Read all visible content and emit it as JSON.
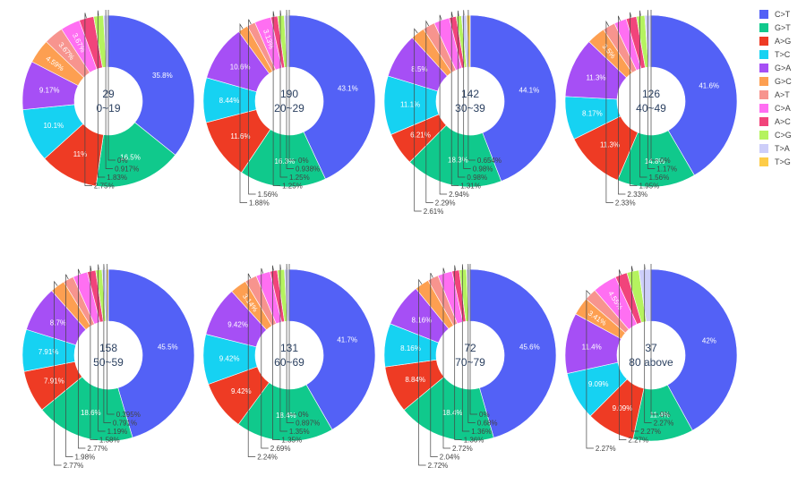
{
  "chart_data": {
    "type": "pie",
    "categories": [
      "C>T",
      "G>T",
      "A>G",
      "T>C",
      "G>A",
      "G>C",
      "A>T",
      "C>A",
      "A>C",
      "C>G",
      "T>A",
      "T>G"
    ],
    "colors": [
      "#5361f6",
      "#10c98c",
      "#ee3b24",
      "#16d2f2",
      "#a64ff5",
      "#fd9f51",
      "#f7948e",
      "#ff6ff2",
      "#f1447b",
      "#b5f35f",
      "#cdcef9",
      "#fdcc48"
    ],
    "charts": [
      {
        "center_count": "29",
        "center_label": "0~19",
        "values": [
          35.8,
          16.5,
          11,
          10.1,
          9.17,
          4.59,
          3.67,
          3.67,
          2.75,
          1.83,
          0.917,
          0
        ],
        "labels": [
          "35.8%",
          "16.5%",
          "11%",
          "10.1%",
          "9.17%",
          "4.59%",
          "3.67%",
          "3.67%",
          "2.75%",
          "1.83%",
          "0.917%",
          "0%"
        ]
      },
      {
        "center_count": "190",
        "center_label": "20~29",
        "values": [
          43.1,
          16.3,
          11.6,
          8.44,
          10.6,
          1.88,
          1.56,
          3.13,
          1.25,
          1.25,
          0.938,
          0
        ],
        "labels": [
          "43.1%",
          "16.3%",
          "11.6%",
          "8.44%",
          "10.6%",
          "1.88%",
          "1.56%",
          "3.13%",
          "1.25%",
          "1.25%",
          "0.938%",
          "0%"
        ]
      },
      {
        "center_count": "142",
        "center_label": "30~39",
        "values": [
          44.1,
          18.3,
          6.21,
          11.1,
          8.5,
          2.61,
          2.29,
          2.94,
          1.31,
          0.98,
          0.98,
          0.654
        ],
        "labels": [
          "44.1%",
          "18.3%",
          "6.21%",
          "11.1%",
          "8.5%",
          "2.61%",
          "2.29%",
          "2.94%",
          "1.31%",
          "0.98%",
          "0.98%",
          "0.654%"
        ]
      },
      {
        "center_count": "126",
        "center_label": "40~49",
        "values": [
          41.6,
          14.8,
          11.3,
          8.17,
          11.3,
          3.5,
          2.33,
          2.33,
          1.95,
          1.56,
          1.17,
          0
        ],
        "labels": [
          "41.6%",
          "14.8%",
          "11.3%",
          "8.17%",
          "11.3%",
          "3.5%",
          "2.33%",
          "2.33%",
          "1.95%",
          "1.56%",
          "1.17%",
          "0%"
        ]
      },
      {
        "center_count": "158",
        "center_label": "50~59",
        "values": [
          45.5,
          18.6,
          7.91,
          7.91,
          8.7,
          2.77,
          1.98,
          2.77,
          1.58,
          1.19,
          0.791,
          0.395
        ],
        "labels": [
          "45.5%",
          "18.6%",
          "7.91%",
          "7.91%",
          "8.7%",
          "2.77%",
          "1.98%",
          "2.77%",
          "1.58%",
          "1.19%",
          "0.791%",
          "0.395%"
        ]
      },
      {
        "center_count": "131",
        "center_label": "60~69",
        "values": [
          41.7,
          18.4,
          9.42,
          9.42,
          9.42,
          3.14,
          2.24,
          2.69,
          1.35,
          1.35,
          0.897,
          0
        ],
        "labels": [
          "41.7%",
          "18.4%",
          "9.42%",
          "9.42%",
          "9.42%",
          "3.14%",
          "2.24%",
          "2.69%",
          "1.35%",
          "1.35%",
          "0.897%",
          "0%"
        ]
      },
      {
        "center_count": "72",
        "center_label": "70~79",
        "values": [
          45.6,
          18.4,
          8.84,
          8.16,
          8.16,
          2.72,
          2.04,
          2.72,
          1.36,
          1.36,
          0.68,
          0
        ],
        "labels": [
          "45.6%",
          "18.4%",
          "8.84%",
          "8.16%",
          "8.16%",
          "2.72%",
          "2.04%",
          "2.72%",
          "1.36%",
          "1.36%",
          "0.68%",
          "0%"
        ]
      },
      {
        "center_count": "37",
        "center_label": "80 above",
        "values": [
          42,
          11.4,
          9.09,
          9.09,
          11.4,
          3.41,
          2.27,
          4.55,
          2.27,
          2.27,
          2.27,
          0
        ],
        "labels": [
          "42%",
          "11.4%",
          "9.09%",
          "9.09%",
          "11.4%",
          "3.41%",
          "2.27%",
          "4.55%",
          "2.27%",
          "2.27%",
          "2.27%",
          "0%"
        ]
      }
    ]
  }
}
